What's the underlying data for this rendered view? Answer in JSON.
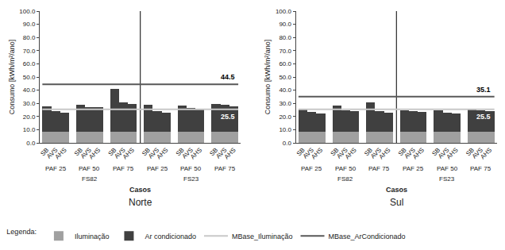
{
  "chart_data": [
    {
      "type": "bar",
      "stacked": true,
      "title": "Norte",
      "xlabel": "Casos",
      "ylabel": "Consumo [kWh/m²/ano]",
      "categories": [
        "SB",
        "AVS",
        "AHS",
        "SB",
        "AVS",
        "AHS",
        "SB",
        "AVS",
        "AHS",
        "SB",
        "AVS",
        "AHS",
        "SB",
        "AVS",
        "AHS",
        "SB",
        "AVS",
        "AHS"
      ],
      "groups": [
        "PAF 25",
        "PAF 50",
        "PAF 75",
        "PAF 25",
        "PAF 50",
        "PAF 75"
      ],
      "fs_labels": [
        "FS82",
        "FS23"
      ],
      "series": [
        {
          "name": "Iluminação",
          "color": "#a0a0a0",
          "values": [
            8.5,
            8.5,
            8.5,
            8.5,
            8.5,
            8.5,
            8.5,
            8.5,
            8.5,
            8.5,
            8.5,
            8.5,
            8.5,
            8.5,
            8.5,
            8.5,
            8.5,
            8.5
          ]
        },
        {
          "name": "Ar condicionado",
          "color": "#404040",
          "values": [
            19.5,
            15.5,
            14.5,
            20.5,
            18.5,
            18.5,
            32.5,
            22.0,
            21.0,
            20.5,
            15.5,
            14.5,
            20.0,
            18.0,
            17.5,
            21.0,
            20.5,
            19.5
          ]
        }
      ],
      "hlines": [
        {
          "name": "MBase_Iluminação",
          "value": 25.5,
          "label": "25.5",
          "color": "#c8c8c8"
        },
        {
          "name": "MBase_ArCondicionado",
          "value": 44.5,
          "label": "44.5",
          "color": "#585858"
        }
      ],
      "ylim": [
        0,
        100
      ],
      "yticks": [
        {
          "value": 0,
          "label": "0.0"
        },
        {
          "value": 10,
          "label": "10.0"
        },
        {
          "value": 20,
          "label": "20.0"
        },
        {
          "value": 30,
          "label": "30.0"
        },
        {
          "value": 40,
          "label": "40.0"
        },
        {
          "value": 50,
          "label": "50.0"
        },
        {
          "value": 60,
          "label": "60.0"
        },
        {
          "value": 70,
          "label": "70.0"
        },
        {
          "value": 80,
          "label": "80.0"
        },
        {
          "value": 90,
          "label": "90.0"
        },
        {
          "value": 100,
          "label": "100.0"
        }
      ],
      "grid": false,
      "legend": "bottom",
      "legend_title": "Legenda:"
    },
    {
      "type": "bar",
      "stacked": true,
      "title": "Sul",
      "xlabel": "Casos",
      "ylabel": "Consumo [kWh/m²/ano]",
      "categories": [
        "SB",
        "AVS",
        "AHS",
        "SB",
        "AVS",
        "AHS",
        "SB",
        "AVS",
        "AHS",
        "SB",
        "AVS",
        "AHS",
        "SB",
        "AVS",
        "AHS",
        "SB",
        "AVS",
        "AHS"
      ],
      "groups": [
        "PAF 25",
        "PAF 50",
        "PAF 75",
        "PAF 25",
        "PAF 50",
        "PAF 75"
      ],
      "fs_labels": [
        "FS82",
        "FS23"
      ],
      "series": [
        {
          "name": "Iluminação",
          "color": "#a0a0a0",
          "values": [
            8.5,
            8.5,
            8.5,
            8.5,
            8.5,
            8.5,
            8.5,
            8.5,
            8.5,
            8.5,
            8.5,
            8.5,
            8.5,
            8.5,
            8.5,
            8.5,
            8.5,
            8.5
          ]
        },
        {
          "name": "Ar condicionado",
          "color": "#404040",
          "values": [
            17.5,
            15.0,
            14.0,
            20.0,
            16.5,
            15.5,
            22.0,
            15.5,
            14.5,
            16.5,
            15.5,
            15.0,
            16.5,
            14.5,
            13.5,
            17.5,
            16.5,
            15.5
          ]
        }
      ],
      "hlines": [
        {
          "name": "MBase_Iluminação",
          "value": 25.5,
          "label": "25.5",
          "color": "#c8c8c8"
        },
        {
          "name": "MBase_ArCondicionado",
          "value": 35.1,
          "label": "35.1",
          "color": "#585858"
        }
      ],
      "ylim": [
        0,
        100
      ],
      "yticks": [
        {
          "value": 0,
          "label": "0.0"
        },
        {
          "value": 10,
          "label": "10.0"
        },
        {
          "value": 20,
          "label": "20.0"
        },
        {
          "value": 30,
          "label": "30.0"
        },
        {
          "value": 40,
          "label": "40.0"
        },
        {
          "value": 50,
          "label": "50.0"
        },
        {
          "value": 60,
          "label": "60.0"
        },
        {
          "value": 70,
          "label": "70.0"
        },
        {
          "value": 80,
          "label": "80.0"
        },
        {
          "value": 90,
          "label": "90.0"
        },
        {
          "value": 100,
          "label": "100.0"
        }
      ],
      "grid": false
    }
  ]
}
